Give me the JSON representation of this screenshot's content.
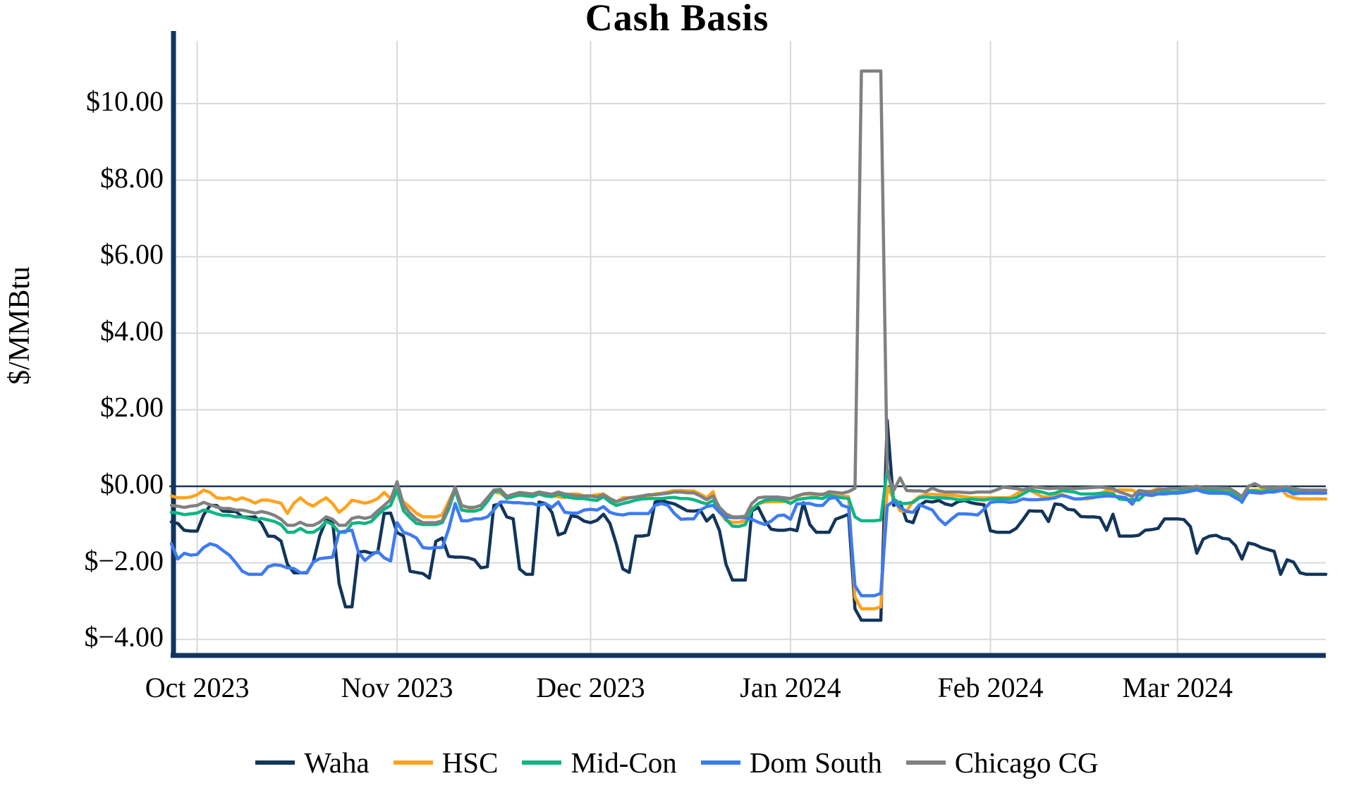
{
  "chart_data": {
    "type": "line",
    "title": "Cash Basis",
    "ylabel": "$/MMBtu",
    "xlabel": "",
    "background": "#FFFFFF",
    "grid_color": "#D9D9D9",
    "axis_color": "#12355B",
    "ylim": [
      -4.4,
      11.64
    ],
    "x_range_days": 180,
    "x_tick_labels": [
      "Oct 2023",
      "Nov 2023",
      "Dec 2023",
      "Jan 2024",
      "Feb 2024",
      "Mar 2024"
    ],
    "x_tick_day_index": [
      4,
      35,
      65,
      96,
      127,
      156
    ],
    "y_ticks": [
      {
        "value": 10,
        "label": "$10.00"
      },
      {
        "value": 8,
        "label": "$8.00"
      },
      {
        "value": 6,
        "label": "$6.00"
      },
      {
        "value": 4,
        "label": "$4.00"
      },
      {
        "value": 2,
        "label": "$2.00"
      },
      {
        "value": 0,
        "label": "$0.00"
      },
      {
        "value": -2,
        "label": "$−2.00"
      },
      {
        "value": -4,
        "label": "$−4.00"
      }
    ],
    "legend_position": "bottom",
    "series": [
      {
        "name": "Waha",
        "color": "#12355B",
        "values": [
          -0.93,
          -0.97,
          -1.15,
          -1.17,
          -1.17,
          -0.75,
          -0.5,
          -0.5,
          -0.65,
          -0.66,
          -0.66,
          -0.8,
          -0.81,
          -0.8,
          -0.97,
          -1.3,
          -1.31,
          -1.43,
          -2.04,
          -2.26,
          -2.26,
          -2.26,
          -1.98,
          -1.3,
          -0.88,
          -0.9,
          -2.54,
          -3.15,
          -3.15,
          -1.72,
          -1.7,
          -1.75,
          -1.73,
          -0.71,
          -0.7,
          -1.21,
          -1.3,
          -2.22,
          -2.25,
          -2.28,
          -2.4,
          -1.44,
          -1.35,
          -1.83,
          -1.85,
          -1.85,
          -1.87,
          -1.92,
          -2.13,
          -2.1,
          -0.5,
          -0.46,
          -0.8,
          -0.85,
          -2.16,
          -2.3,
          -2.3,
          -0.41,
          -0.45,
          -0.68,
          -1.27,
          -1.21,
          -0.77,
          -0.8,
          -0.91,
          -0.95,
          -0.89,
          -0.73,
          -0.97,
          -1.51,
          -2.16,
          -2.25,
          -1.3,
          -1.3,
          -1.27,
          -0.41,
          -0.37,
          -0.42,
          -0.46,
          -0.55,
          -0.64,
          -0.65,
          -0.62,
          -0.91,
          -0.75,
          -1.16,
          -2.04,
          -2.45,
          -2.45,
          -2.45,
          -0.64,
          -0.55,
          -0.89,
          -1.12,
          -1.15,
          -1.15,
          -1.12,
          -1.16,
          -0.43,
          -1.0,
          -1.2,
          -1.2,
          -1.2,
          -0.86,
          -0.8,
          -0.73,
          -3.2,
          -3.5,
          -3.5,
          -3.5,
          -3.5,
          1.72,
          -0.5,
          -0.42,
          -0.9,
          -0.95,
          -0.5,
          -0.39,
          -0.41,
          -0.37,
          -0.46,
          -0.5,
          -0.4,
          -0.37,
          -0.43,
          -0.46,
          -0.48,
          -1.16,
          -1.2,
          -1.2,
          -1.2,
          -1.1,
          -0.88,
          -0.64,
          -0.65,
          -0.65,
          -0.92,
          -0.46,
          -0.48,
          -0.6,
          -0.62,
          -0.79,
          -0.8,
          -0.8,
          -0.82,
          -1.15,
          -0.73,
          -1.3,
          -1.3,
          -1.3,
          -1.28,
          -1.15,
          -1.13,
          -1.1,
          -0.85,
          -0.85,
          -0.85,
          -0.87,
          -1.05,
          -1.75,
          -1.38,
          -1.3,
          -1.28,
          -1.36,
          -1.38,
          -1.55,
          -1.9,
          -1.48,
          -1.52,
          -1.6,
          -1.65,
          -1.7,
          -2.3,
          -1.92,
          -1.98,
          -2.26,
          -2.3,
          -2.3,
          -2.3,
          -2.3
        ]
      },
      {
        "name": "HSC",
        "color": "#FFA21D",
        "values": [
          -0.25,
          -0.3,
          -0.3,
          -0.28,
          -0.22,
          -0.1,
          -0.16,
          -0.3,
          -0.32,
          -0.3,
          -0.36,
          -0.3,
          -0.36,
          -0.44,
          -0.36,
          -0.36,
          -0.4,
          -0.44,
          -0.71,
          -0.44,
          -0.3,
          -0.44,
          -0.52,
          -0.4,
          -0.3,
          -0.45,
          -0.68,
          -0.55,
          -0.36,
          -0.4,
          -0.44,
          -0.4,
          -0.32,
          -0.16,
          -0.32,
          -0.11,
          -0.41,
          -0.55,
          -0.7,
          -0.8,
          -0.8,
          -0.8,
          -0.75,
          -0.4,
          -0.05,
          -0.6,
          -0.65,
          -0.55,
          -0.5,
          -0.3,
          -0.15,
          -0.18,
          -0.3,
          -0.25,
          -0.2,
          -0.2,
          -0.25,
          -0.2,
          -0.18,
          -0.25,
          -0.27,
          -0.3,
          -0.2,
          -0.2,
          -0.25,
          -0.25,
          -0.22,
          -0.2,
          -0.32,
          -0.41,
          -0.3,
          -0.3,
          -0.28,
          -0.27,
          -0.26,
          -0.2,
          -0.18,
          -0.15,
          -0.11,
          -0.11,
          -0.12,
          -0.12,
          -0.2,
          -0.3,
          -0.14,
          -0.68,
          -0.89,
          -0.94,
          -0.94,
          -0.9,
          -0.59,
          -0.46,
          -0.41,
          -0.4,
          -0.4,
          -0.4,
          -0.32,
          -0.27,
          -0.2,
          -0.21,
          -0.23,
          -0.2,
          -0.2,
          -0.21,
          -0.25,
          -0.27,
          -2.9,
          -3.2,
          -3.2,
          -3.2,
          -3.15,
          -0.02,
          -0.33,
          -0.64,
          -0.65,
          -0.39,
          -0.27,
          -0.21,
          -0.21,
          -0.22,
          -0.23,
          -0.23,
          -0.25,
          -0.27,
          -0.3,
          -0.3,
          -0.3,
          -0.3,
          -0.3,
          -0.3,
          -0.3,
          -0.2,
          -0.11,
          -0.09,
          -0.18,
          -0.27,
          -0.29,
          -0.25,
          -0.2,
          -0.28,
          -0.33,
          -0.33,
          -0.33,
          -0.3,
          -0.2,
          -0.11,
          -0.15,
          -0.09,
          -0.1,
          -0.1,
          -0.2,
          -0.15,
          -0.12,
          -0.06,
          -0.09,
          -0.06,
          -0.06,
          -0.05,
          -0.04,
          0.0,
          -0.09,
          -0.06,
          -0.07,
          -0.08,
          -0.09,
          -0.2,
          -0.29,
          -0.11,
          -0.1,
          -0.1,
          -0.09,
          -0.08,
          -0.06,
          -0.24,
          -0.3,
          -0.33,
          -0.33,
          -0.33,
          -0.33,
          -0.33
        ]
      },
      {
        "name": "Mid-Con",
        "color": "#0FB583",
        "values": [
          -0.68,
          -0.7,
          -0.74,
          -0.72,
          -0.7,
          -0.62,
          -0.66,
          -0.72,
          -0.76,
          -0.76,
          -0.8,
          -0.8,
          -0.84,
          -0.88,
          -0.84,
          -0.88,
          -0.92,
          -1.0,
          -1.2,
          -1.2,
          -1.1,
          -1.2,
          -1.2,
          -1.1,
          -0.92,
          -1.0,
          -1.2,
          -1.2,
          -0.97,
          -0.95,
          -0.97,
          -0.92,
          -0.75,
          -0.6,
          -0.5,
          -0.09,
          -0.64,
          -0.82,
          -0.97,
          -1.0,
          -1.0,
          -1.0,
          -0.95,
          -0.6,
          -0.09,
          -0.62,
          -0.65,
          -0.65,
          -0.6,
          -0.4,
          -0.14,
          -0.12,
          -0.32,
          -0.27,
          -0.23,
          -0.25,
          -0.27,
          -0.2,
          -0.25,
          -0.27,
          -0.2,
          -0.27,
          -0.3,
          -0.32,
          -0.32,
          -0.35,
          -0.37,
          -0.27,
          -0.41,
          -0.5,
          -0.45,
          -0.41,
          -0.36,
          -0.33,
          -0.32,
          -0.32,
          -0.32,
          -0.3,
          -0.29,
          -0.32,
          -0.32,
          -0.35,
          -0.41,
          -0.46,
          -0.37,
          -0.62,
          -0.86,
          -1.04,
          -1.05,
          -1.0,
          -0.62,
          -0.45,
          -0.37,
          -0.35,
          -0.35,
          -0.37,
          -0.45,
          -0.35,
          -0.32,
          -0.3,
          -0.3,
          -0.32,
          -0.23,
          -0.27,
          -0.3,
          -0.32,
          -0.8,
          -0.9,
          -0.9,
          -0.9,
          -0.88,
          0.46,
          -0.33,
          -0.45,
          -0.45,
          -0.42,
          -0.3,
          -0.28,
          -0.3,
          -0.3,
          -0.31,
          -0.32,
          -0.35,
          -0.35,
          -0.33,
          -0.35,
          -0.36,
          -0.33,
          -0.32,
          -0.32,
          -0.33,
          -0.3,
          -0.2,
          -0.11,
          -0.12,
          -0.15,
          -0.2,
          -0.18,
          -0.11,
          -0.13,
          -0.15,
          -0.2,
          -0.2,
          -0.2,
          -0.18,
          -0.18,
          -0.2,
          -0.33,
          -0.35,
          -0.35,
          -0.36,
          -0.2,
          -0.22,
          -0.18,
          -0.15,
          -0.15,
          -0.15,
          -0.11,
          -0.08,
          -0.06,
          -0.11,
          -0.11,
          -0.12,
          -0.14,
          -0.15,
          -0.2,
          -0.42,
          -0.11,
          -0.12,
          -0.15,
          -0.11,
          -0.11,
          -0.11,
          -0.06,
          -0.15,
          -0.15,
          -0.11,
          -0.11,
          -0.11,
          -0.11
        ]
      },
      {
        "name": "Dom South",
        "color": "#3D7BF2",
        "values": [
          -1.5,
          -1.9,
          -1.75,
          -1.8,
          -1.78,
          -1.6,
          -1.5,
          -1.55,
          -1.68,
          -1.8,
          -2.0,
          -2.22,
          -2.3,
          -2.3,
          -2.3,
          -2.1,
          -2.05,
          -2.07,
          -2.13,
          -2.15,
          -2.26,
          -2.25,
          -1.98,
          -1.89,
          -1.87,
          -1.85,
          -1.2,
          -1.17,
          -1.15,
          -1.72,
          -1.94,
          -1.8,
          -1.7,
          -1.87,
          -1.95,
          -0.95,
          -1.2,
          -1.26,
          -1.35,
          -1.6,
          -1.62,
          -1.6,
          -1.6,
          -1.12,
          -0.45,
          -0.9,
          -0.9,
          -0.85,
          -0.85,
          -0.8,
          -0.62,
          -0.41,
          -0.41,
          -0.43,
          -0.43,
          -0.45,
          -0.45,
          -0.5,
          -0.45,
          -0.55,
          -0.41,
          -0.68,
          -0.7,
          -0.7,
          -0.62,
          -0.6,
          -0.62,
          -0.53,
          -0.68,
          -0.73,
          -0.75,
          -0.71,
          -0.71,
          -0.71,
          -0.71,
          -0.5,
          -0.45,
          -0.5,
          -0.71,
          -0.86,
          -0.85,
          -0.85,
          -0.62,
          -0.53,
          -0.5,
          -0.68,
          -0.8,
          -0.82,
          -0.82,
          -0.82,
          -0.86,
          -0.94,
          -1.0,
          -0.91,
          -0.77,
          -0.75,
          -0.86,
          -0.46,
          -0.45,
          -0.45,
          -0.5,
          -0.5,
          -0.32,
          -0.29,
          -0.5,
          -0.55,
          -2.6,
          -2.86,
          -2.86,
          -2.86,
          -2.8,
          -0.51,
          -0.39,
          -0.55,
          -0.66,
          -0.68,
          -0.48,
          -0.55,
          -0.62,
          -0.85,
          -1.0,
          -0.85,
          -0.72,
          -0.72,
          -0.73,
          -0.75,
          -0.6,
          -0.42,
          -0.4,
          -0.4,
          -0.42,
          -0.4,
          -0.33,
          -0.35,
          -0.35,
          -0.34,
          -0.33,
          -0.3,
          -0.24,
          -0.27,
          -0.33,
          -0.33,
          -0.3,
          -0.29,
          -0.27,
          -0.25,
          -0.26,
          -0.27,
          -0.3,
          -0.47,
          -0.2,
          -0.22,
          -0.24,
          -0.2,
          -0.2,
          -0.18,
          -0.18,
          -0.16,
          -0.13,
          -0.09,
          -0.15,
          -0.18,
          -0.18,
          -0.18,
          -0.2,
          -0.3,
          -0.39,
          -0.15,
          -0.17,
          -0.18,
          -0.15,
          -0.15,
          -0.11,
          -0.11,
          -0.2,
          -0.18,
          -0.18,
          -0.18,
          -0.18,
          -0.18
        ]
      },
      {
        "name": "Chicago CG",
        "color": "#808080",
        "values": [
          -0.5,
          -0.52,
          -0.55,
          -0.52,
          -0.5,
          -0.42,
          -0.48,
          -0.54,
          -0.58,
          -0.58,
          -0.62,
          -0.62,
          -0.66,
          -0.7,
          -0.66,
          -0.7,
          -0.76,
          -0.86,
          -1.02,
          -1.02,
          -0.94,
          -1.02,
          -1.02,
          -0.94,
          -0.8,
          -0.86,
          -1.02,
          -1.02,
          -0.84,
          -0.8,
          -0.84,
          -0.8,
          -0.64,
          -0.5,
          -0.35,
          0.12,
          -0.5,
          -0.7,
          -0.86,
          -0.95,
          -0.95,
          -0.95,
          -0.9,
          -0.5,
          -0.02,
          -0.5,
          -0.55,
          -0.55,
          -0.5,
          -0.3,
          -0.1,
          -0.08,
          -0.26,
          -0.21,
          -0.16,
          -0.18,
          -0.2,
          -0.15,
          -0.18,
          -0.21,
          -0.15,
          -0.2,
          -0.22,
          -0.25,
          -0.25,
          -0.25,
          -0.28,
          -0.22,
          -0.32,
          -0.4,
          -0.35,
          -0.3,
          -0.28,
          -0.25,
          -0.22,
          -0.22,
          -0.2,
          -0.18,
          -0.15,
          -0.15,
          -0.17,
          -0.17,
          -0.25,
          -0.35,
          -0.25,
          -0.55,
          -0.72,
          -0.8,
          -0.8,
          -0.78,
          -0.45,
          -0.3,
          -0.28,
          -0.28,
          -0.28,
          -0.3,
          -0.32,
          -0.25,
          -0.2,
          -0.18,
          -0.2,
          -0.22,
          -0.14,
          -0.16,
          -0.18,
          -0.14,
          -0.05,
          10.85,
          10.85,
          10.85,
          10.85,
          0.35,
          -0.11,
          0.22,
          -0.11,
          -0.12,
          -0.12,
          -0.14,
          -0.05,
          -0.12,
          -0.15,
          -0.15,
          -0.15,
          -0.16,
          -0.17,
          -0.15,
          -0.15,
          -0.15,
          -0.09,
          -0.02,
          -0.04,
          -0.06,
          -0.09,
          -0.05,
          -0.02,
          -0.04,
          -0.06,
          -0.05,
          -0.04,
          -0.05,
          -0.06,
          -0.05,
          -0.04,
          -0.03,
          -0.02,
          -0.04,
          -0.06,
          -0.15,
          -0.2,
          -0.27,
          -0.11,
          -0.13,
          -0.15,
          -0.09,
          -0.08,
          -0.06,
          -0.06,
          -0.04,
          -0.03,
          0.0,
          -0.04,
          -0.04,
          -0.04,
          -0.05,
          -0.05,
          -0.15,
          -0.27,
          0.0,
          0.07,
          -0.02,
          -0.03,
          -0.03,
          -0.02,
          -0.01,
          -0.06,
          -0.09,
          -0.1,
          -0.1,
          -0.1,
          -0.1
        ]
      }
    ]
  }
}
